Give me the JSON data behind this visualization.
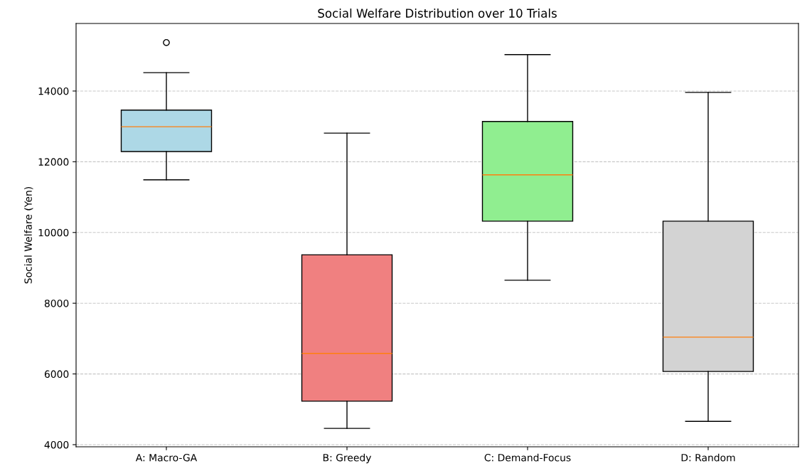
{
  "chart_data": {
    "type": "box",
    "title": "Social Welfare Distribution over 10 Trials",
    "ylabel": "Social Welfare (Yen)",
    "categories": [
      "A: Macro-GA",
      "B: Greedy",
      "C: Demand-Focus",
      "D: Random"
    ],
    "colors": [
      "#add8e6",
      "#f08080",
      "#90ee90",
      "#d3d3d3"
    ],
    "boxes": [
      {
        "low": 11490,
        "q1": 12290,
        "median": 12990,
        "q3": 13460,
        "high": 14520,
        "outliers": [
          15370
        ]
      },
      {
        "low": 4460,
        "q1": 5230,
        "median": 6580,
        "q3": 9370,
        "high": 12810
      },
      {
        "low": 8650,
        "q1": 10320,
        "median": 11630,
        "q3": 13140,
        "high": 15030
      },
      {
        "low": 4660,
        "q1": 6070,
        "median": 7040,
        "q3": 10320,
        "high": 13960
      }
    ],
    "ylim": [
      3940,
      15910
    ],
    "yticks": [
      4000,
      6000,
      8000,
      10000,
      12000,
      14000
    ],
    "grid": "y"
  }
}
